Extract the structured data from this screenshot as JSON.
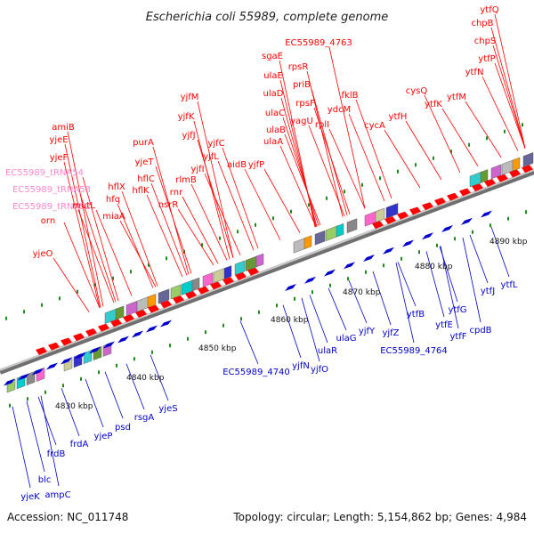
{
  "title": "Escherichia coli 55989, complete genome",
  "accession": "Accession: NC_011748",
  "topology": "Topology: circular; Length: 5,154,862 bp; Genes: 4,984",
  "colors": {
    "forward": "#ff0000",
    "reverse": "#0000cc",
    "trna": "#ff88cc",
    "backbone": "#888888"
  },
  "scale_labels": [
    "4830 kbp",
    "4840 kbp",
    "4850 kbp",
    "4860 kbp",
    "4870 kbp",
    "4880 kbp",
    "4890 kbp"
  ],
  "top_labels": [
    "yjeO",
    "orn",
    "EC55989_tRNA52",
    "EC55989_tRNA53",
    "EC55989_tRNA54",
    "mutL",
    "miaA",
    "hfq",
    "hflX",
    "hflK",
    "hflC",
    "purA",
    "yjeT",
    "nsrR",
    "rnr",
    "rlmB",
    "yjfI",
    "yjfJ",
    "yjfK",
    "yjfL",
    "yjfM",
    "yjfC",
    "aidB",
    "yjfP",
    "ulaA",
    "ulaB",
    "ulaC",
    "ulaD",
    "ulaE",
    "sgaE",
    "rpsR",
    "yagU",
    "priB",
    "rpsF",
    "rplI",
    "EC55989_4763",
    "ydcM",
    "fklB",
    "cycA",
    "ytfH",
    "cysQ",
    "ytfK",
    "ytfM",
    "ytfN",
    "ytfP",
    "chpS",
    "chpB",
    "ytfQ",
    "amiB",
    "yjeE",
    "yjeF"
  ],
  "bottom_labels": [
    "yjeK",
    "blc",
    "ampC",
    "frdB",
    "frdA",
    "yjeP",
    "psd",
    "rsgA",
    "yjeS",
    "EC55989_4740",
    "yjfN",
    "yjfO",
    "ulaR",
    "ulaG",
    "yjfY",
    "yjfZ",
    "EC55989_4764",
    "ytfB",
    "ytfE",
    "ytfF",
    "ytfG",
    "cpdB",
    "ytfJ",
    "ytfL"
  ]
}
